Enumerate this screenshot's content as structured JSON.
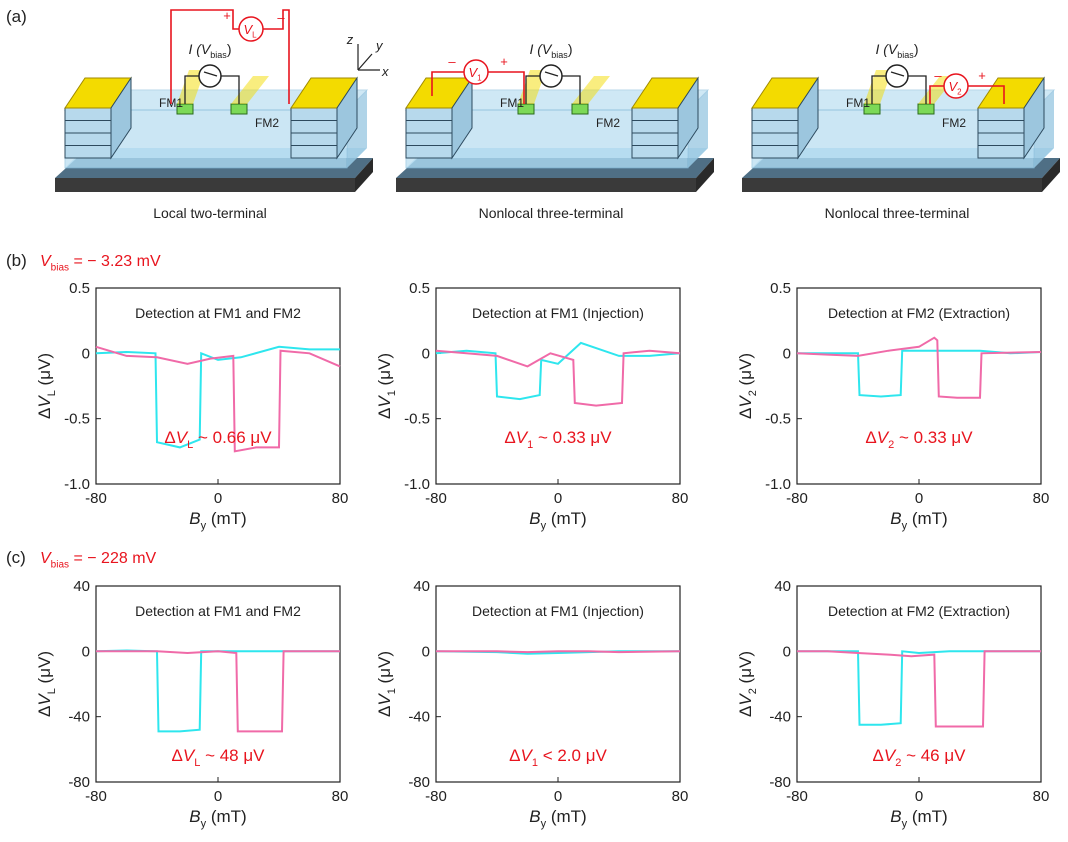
{
  "colors": {
    "red": "#e8141e",
    "cyan": "#2ee6ee",
    "pink": "#f06aa8",
    "gold": "#f3db00",
    "blue": "#a9d6ee",
    "gray": "#555555"
  },
  "panel_labels": {
    "a": "(a)",
    "b": "(b)",
    "c": "(c)"
  },
  "device": {
    "axes": {
      "x": "x",
      "y": "y",
      "z": "z"
    },
    "fm1": "FM1",
    "fm2": "FM2",
    "current_prefix": "I (",
    "current_V": "V",
    "current_sub": "bias",
    "current_suffix": ")",
    "V": "V",
    "volt_subs": [
      "L",
      "1",
      "2"
    ],
    "plus": "+",
    "minus": "–",
    "captions": [
      "Local two-terminal",
      "Nonlocal three-terminal",
      "Nonlocal three-terminal"
    ]
  },
  "rows": [
    {
      "bias_V": "V",
      "bias_sub": "bias",
      "bias_value": " = − 3.23 mV"
    },
    {
      "bias_V": "V",
      "bias_sub": "bias",
      "bias_value": " = − 228 mV"
    }
  ],
  "plot_text": {
    "xlabel_B": "B",
    "xlabel_sub": "y",
    "xlabel_unit": " (mT)",
    "ylabel_delta": "Δ",
    "ylabel_V": "V",
    "ylabel_unit": " (μV)",
    "ylabel_subs": [
      "L",
      "1",
      "2"
    ]
  },
  "chart_data": [
    {
      "type": "line",
      "title": "Detection at FM1 and FM2",
      "row": 0,
      "col": 0,
      "xlim": [
        -80,
        80
      ],
      "xticks": [
        "-80",
        "0",
        "80"
      ],
      "ylim": [
        -1.0,
        0.5
      ],
      "yticks": [
        "0.5",
        "0",
        "-0.5",
        "-1.0"
      ],
      "annotation": {
        "delta": "ΔV",
        "sub": "L",
        "text": " ~ 0.66 μV"
      },
      "series": [
        {
          "color": "cyan",
          "points": [
            [
              -80,
              0
            ],
            [
              -60,
              0.01
            ],
            [
              -41,
              0.0
            ],
            [
              -40,
              -0.68
            ],
            [
              -25,
              -0.72
            ],
            [
              -12,
              -0.66
            ],
            [
              -11,
              0.0
            ],
            [
              0,
              -0.05
            ],
            [
              15,
              -0.03
            ],
            [
              40,
              0.05
            ],
            [
              60,
              0.03
            ],
            [
              80,
              0.03
            ]
          ]
        },
        {
          "color": "pink",
          "points": [
            [
              -80,
              0.05
            ],
            [
              -60,
              -0.02
            ],
            [
              -40,
              -0.03
            ],
            [
              -20,
              -0.08
            ],
            [
              -5,
              -0.04
            ],
            [
              10,
              -0.02
            ],
            [
              11,
              -0.75
            ],
            [
              25,
              -0.72
            ],
            [
              40,
              -0.72
            ],
            [
              41,
              0.02
            ],
            [
              60,
              0.0
            ],
            [
              80,
              -0.1
            ]
          ]
        }
      ]
    },
    {
      "type": "line",
      "title": "Detection at FM1 (Injection)",
      "row": 0,
      "col": 1,
      "xlim": [
        -80,
        80
      ],
      "xticks": [
        "-80",
        "0",
        "80"
      ],
      "ylim": [
        -1.0,
        0.5
      ],
      "yticks": [
        "0.5",
        "0",
        "-0.5",
        "-1.0"
      ],
      "annotation": {
        "delta": "ΔV",
        "sub": "1",
        "text": " ~ 0.33 μV"
      },
      "series": [
        {
          "color": "cyan",
          "points": [
            [
              -80,
              0
            ],
            [
              -60,
              0.02
            ],
            [
              -41,
              0.0
            ],
            [
              -40,
              -0.33
            ],
            [
              -25,
              -0.35
            ],
            [
              -12,
              -0.32
            ],
            [
              -11,
              -0.05
            ],
            [
              0,
              -0.08
            ],
            [
              15,
              0.08
            ],
            [
              40,
              -0.02
            ],
            [
              60,
              -0.02
            ],
            [
              80,
              0.0
            ]
          ]
        },
        {
          "color": "pink",
          "points": [
            [
              -80,
              0.02
            ],
            [
              -60,
              0.0
            ],
            [
              -40,
              -0.02
            ],
            [
              -20,
              -0.1
            ],
            [
              -5,
              0.0
            ],
            [
              10,
              -0.05
            ],
            [
              11,
              -0.38
            ],
            [
              25,
              -0.4
            ],
            [
              42,
              -0.38
            ],
            [
              43,
              0.0
            ],
            [
              60,
              0.02
            ],
            [
              80,
              0.0
            ]
          ]
        }
      ]
    },
    {
      "type": "line",
      "title": "Detection at FM2 (Extraction)",
      "row": 0,
      "col": 2,
      "xlim": [
        -80,
        80
      ],
      "xticks": [
        "-80",
        "0",
        "80"
      ],
      "ylim": [
        -1.0,
        0.5
      ],
      "yticks": [
        "0.5",
        "0",
        "-0.5",
        "-1.0"
      ],
      "annotation": {
        "delta": "ΔV",
        "sub": "2",
        "text": " ~ 0.33 μV"
      },
      "series": [
        {
          "color": "cyan",
          "points": [
            [
              -80,
              0
            ],
            [
              -60,
              0.0
            ],
            [
              -40,
              0.0
            ],
            [
              -39,
              -0.32
            ],
            [
              -25,
              -0.33
            ],
            [
              -12,
              -0.32
            ],
            [
              -11,
              0.02
            ],
            [
              0,
              0.02
            ],
            [
              20,
              0.02
            ],
            [
              40,
              0.02
            ],
            [
              60,
              0.0
            ],
            [
              80,
              0.01
            ]
          ]
        },
        {
          "color": "pink",
          "points": [
            [
              -80,
              0.0
            ],
            [
              -60,
              -0.01
            ],
            [
              -40,
              -0.02
            ],
            [
              -20,
              0.02
            ],
            [
              0,
              0.05
            ],
            [
              10,
              0.12
            ],
            [
              12,
              0.1
            ],
            [
              13,
              -0.33
            ],
            [
              25,
              -0.34
            ],
            [
              40,
              -0.34
            ],
            [
              41,
              0.0
            ],
            [
              80,
              0.01
            ]
          ]
        }
      ]
    },
    {
      "type": "line",
      "title": "Detection at FM1 and FM2",
      "row": 1,
      "col": 0,
      "xlim": [
        -80,
        80
      ],
      "xticks": [
        "-80",
        "0",
        "80"
      ],
      "ylim": [
        -80,
        40
      ],
      "yticks": [
        "40",
        "0",
        "-40",
        "-80"
      ],
      "annotation": {
        "delta": "ΔV",
        "sub": "L",
        "text": " ~ 48 μV"
      },
      "series": [
        {
          "color": "cyan",
          "points": [
            [
              -80,
              0
            ],
            [
              -60,
              0.5
            ],
            [
              -40,
              0
            ],
            [
              -39,
              -49
            ],
            [
              -25,
              -49
            ],
            [
              -12,
              -48
            ],
            [
              -11,
              0
            ],
            [
              0,
              0
            ],
            [
              20,
              0
            ],
            [
              40,
              0
            ],
            [
              60,
              0
            ],
            [
              80,
              0
            ]
          ]
        },
        {
          "color": "pink",
          "points": [
            [
              -80,
              0
            ],
            [
              -60,
              0
            ],
            [
              -40,
              0
            ],
            [
              -20,
              -1
            ],
            [
              0,
              0
            ],
            [
              12,
              -1
            ],
            [
              13,
              -49
            ],
            [
              25,
              -49
            ],
            [
              42,
              -49
            ],
            [
              43,
              0
            ],
            [
              60,
              0
            ],
            [
              80,
              0
            ]
          ]
        }
      ]
    },
    {
      "type": "line",
      "title": "Detection at FM1 (Injection)",
      "row": 1,
      "col": 1,
      "xlim": [
        -80,
        80
      ],
      "xticks": [
        "-80",
        "0",
        "80"
      ],
      "ylim": [
        -80,
        40
      ],
      "yticks": [
        "40",
        "0",
        "-40",
        "-80"
      ],
      "annotation": {
        "delta": "ΔV",
        "sub": "1",
        "text": " < 2.0 μV"
      },
      "series": [
        {
          "color": "cyan",
          "points": [
            [
              -80,
              0
            ],
            [
              -40,
              -0.5
            ],
            [
              -20,
              -1.5
            ],
            [
              0,
              -1
            ],
            [
              20,
              -0.5
            ],
            [
              40,
              0
            ],
            [
              80,
              0
            ]
          ]
        },
        {
          "color": "pink",
          "points": [
            [
              -80,
              0
            ],
            [
              -40,
              0
            ],
            [
              -20,
              -0.5
            ],
            [
              0,
              0
            ],
            [
              20,
              0
            ],
            [
              40,
              -0.5
            ],
            [
              80,
              0
            ]
          ]
        }
      ]
    },
    {
      "type": "line",
      "title": "Detection at FM2 (Extraction)",
      "row": 1,
      "col": 2,
      "xlim": [
        -80,
        80
      ],
      "xticks": [
        "-80",
        "0",
        "80"
      ],
      "ylim": [
        -80,
        40
      ],
      "yticks": [
        "40",
        "0",
        "-40",
        "-80"
      ],
      "annotation": {
        "delta": "ΔV",
        "sub": "2",
        "text": " ~ 46 μV"
      },
      "series": [
        {
          "color": "cyan",
          "points": [
            [
              -80,
              0
            ],
            [
              -60,
              0
            ],
            [
              -40,
              0
            ],
            [
              -39,
              -45
            ],
            [
              -25,
              -45
            ],
            [
              -12,
              -44
            ],
            [
              -11,
              0
            ],
            [
              0,
              -1
            ],
            [
              20,
              0
            ],
            [
              40,
              0
            ],
            [
              60,
              0
            ],
            [
              80,
              0
            ]
          ]
        },
        {
          "color": "pink",
          "points": [
            [
              -80,
              0
            ],
            [
              -60,
              0
            ],
            [
              -40,
              -1
            ],
            [
              -20,
              -2
            ],
            [
              -5,
              -3
            ],
            [
              10,
              -2
            ],
            [
              11,
              -46
            ],
            [
              25,
              -46
            ],
            [
              42,
              -46
            ],
            [
              43,
              0
            ],
            [
              60,
              0
            ],
            [
              80,
              0
            ]
          ]
        }
      ]
    }
  ]
}
